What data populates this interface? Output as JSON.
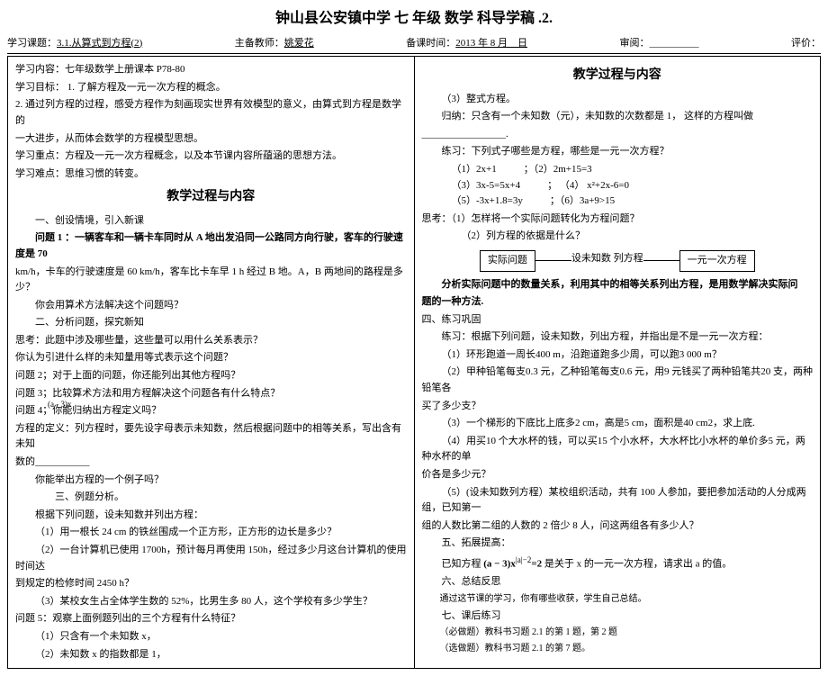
{
  "mainTitle": "钟山县公安镇中学 七 年级 数学 科导学稿    .2.",
  "header": {
    "courseLabel": "学习课题：",
    "course": "3.1.从算式到方程(2)",
    "teacherLabel": "主备教师：",
    "teacher": "姚爱花",
    "timeLabel": "备课时间：",
    "time": "2013 年 8 月__日",
    "reviewLabel": "审阅：",
    "review": "__________",
    "scoreLabel": "评价："
  },
  "left": {
    "l1": "学习内容：七年级数学上册课本 P78-80",
    "l2": "学习目标：  1.  了解方程及一元一次方程的概念。",
    "l3": "2. 通过列方程的过程，感受方程作为刻画现实世界有效模型的意义，由算式到方程是数学的",
    "l4": "一大进步，从而体会数学的方程模型思想。",
    "l5": "学习重点：方程及一元一次方程概念，以及本节课内容所蕴涵的思想方法。",
    "l6": "学习难点：思维习惯的转变。",
    "secTitle": "教学过程与内容",
    "p1": "一、创设情境，引入新课",
    "p2": "问题 1 ：一辆客车和一辆卡车同时从 A 地出发沿同一公路同方向行驶，客车的行驶速度是 70",
    "p3": "km/h，卡车的行驶速度是 60 km/h，客车比卡车早 1 h 经过 B 地。A，B 两地间的路程是多少？",
    "p4": "你会用算术方法解决这个问题吗？",
    "p5": "二、分析问题，探究新知",
    "p6": "思考：此题中涉及哪些量，这些量可以用什么关系表示？",
    "p7": "你认为引进什么样的未知量用等式表示这个问题？",
    "p8": "问题 2；对于上面的问题，你还能列出其他方程吗？",
    "p9": "问题 3；比较算术方法和用方程解决这个问题各有什么特点？",
    "p9b": "(a - 3)x",
    "p10": "问题 4；你能归纳出方程定义吗？",
    "p11": "方程的定义：列方程时，要先设字母表示未知数，然后根据问题中的相等关系，写出含有未知",
    "p12": "数的___________",
    "p13": "你能举出方程的一个例子吗？",
    "p14": "三、例题分析。",
    "p15": "根据下列问题，设未知数并列出方程：",
    "p16": "（1）用一根长 24 cm 的铁丝围成一个正方形，正方形的边长是多少？",
    "p17": "（2）一台计算机已使用 1700h，预计每月再使用 150h，经过多少月这台计算机的使用时间达",
    "p18": "到规定的检修时间 2450 h？",
    "p19": "（3）某校女生占全体学生数的 52%，比男生多 80 人，这个学校有多少学生？",
    "p20": "问题 5：观察上面例题列出的三个方程有什么特征？",
    "p21": "（1）只含有一个未知数 x，",
    "p22": "（2）未知数 x 的指数都是 1，"
  },
  "right": {
    "secTitle": "教学过程与内容",
    "r1": "（3）整式方程。",
    "r2": "归纳：只含有一个未知数（元），未知数的次数都是 1，  这样的方程叫做",
    "r3": "_________________.",
    "r4": "练习：下列式子哪些是方程，哪些是一元一次方程？",
    "eq1a": "（1）2x+1",
    "eq1b": "；（2）2m+15=3",
    "eq2a": "（3）3x-5=5x+4",
    "eq2b": "； （4）  x²+2x-6=0",
    "eq3a": "（5）-3x+1.8=3y",
    "eq3b": "；（6）3a+9>15",
    "r5a": "思考：",
    "r5b": "（1）怎样将一个实际问题转化为方程问题？",
    "r5c": "（2）列方程的依据是什么？",
    "flow1": "实际问题",
    "flow2": "设未知数 列方程",
    "flow3": "一元一次方程",
    "r6": "分析实际问题中的数量关系，利用其中的相等关系列出方程，是用数学解决实际问",
    "r7": "题的一种方法.",
    "r8": "四、练习巩固",
    "r9": "练习：根据下列问题，设未知数，列出方程，并指出是不是一元一次方程：",
    "r10": "（1）环形跑道一周长400 m，沿跑道跑多少周，可以跑3 000 m？",
    "r11": "（2）甲种铅笔每支0.3 元，乙种铅笔每支0.6 元，用9 元钱买了两种铅笔共20 支，两种铅笔各",
    "r12": "买了多少支？",
    "r13": "（3）一个梯形的下底比上底多2 cm，高是5 cm，面积是40 cm2，求上底.",
    "r14": "（4）用买10 个大水杯的钱，可以买15 个小水杯，大水杯比小水杯的单价多5 元，两种水杯的单",
    "r15": "价各是多少元？",
    "r16": "（5）(设未知数列方程）某校组织活动，共有 100 人参加，要把参加活动的人分成两组，已知第一",
    "r17": "组的人数比第二组的人数的 2 倍少 8 人，问这两组各有多少人？",
    "r18": "五、拓展提高：",
    "r19a": "已知方程 ",
    "r19b": "(a − 3)x",
    "r19c": "|a|−2",
    "r19d": "=2",
    "r19e": " 是关于 x 的一元一次方程，请求出 a 的值。",
    "r20": "六、总结反思",
    "r21": "通过这节课的学习，你有哪些收获，学生自己总结。",
    "r22": "七、课后练习",
    "r23": "（必做题）教科书习题 2.1 的第 1 题，第 2 题",
    "r24": "（选做题）教科书习题 2.1 的第 7 题。"
  }
}
